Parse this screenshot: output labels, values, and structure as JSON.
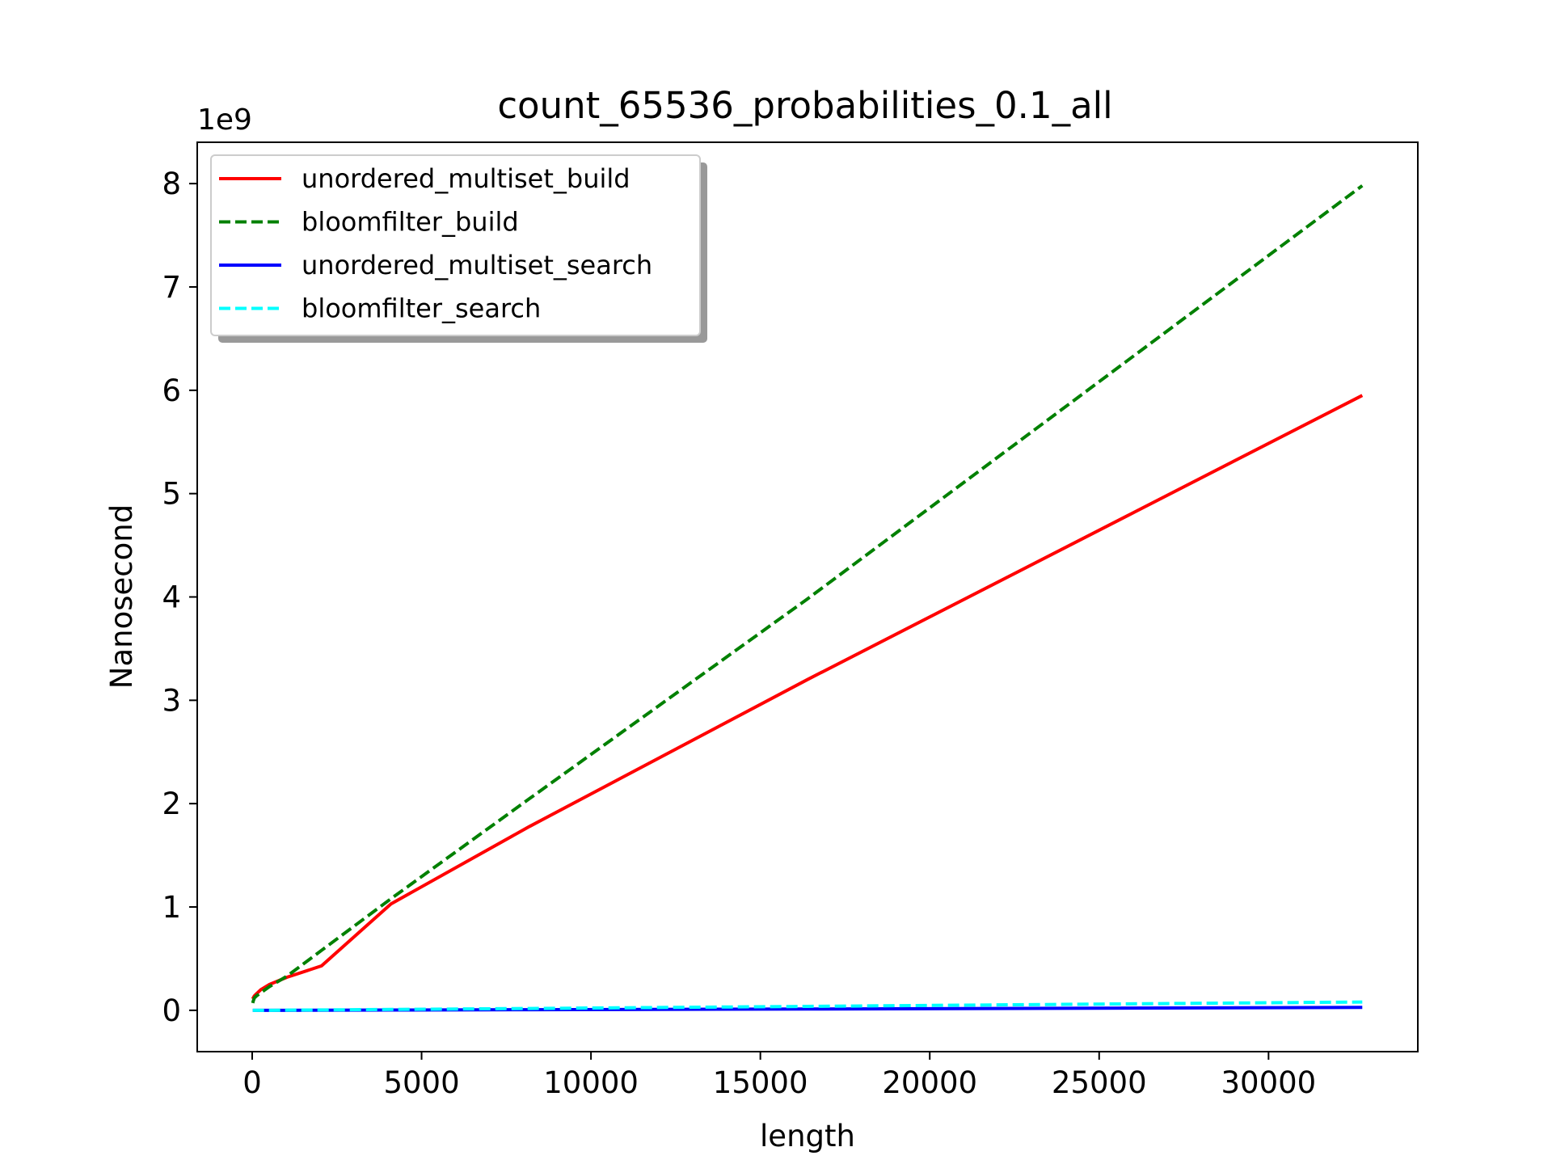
{
  "chart_data": {
    "type": "line",
    "title": "count_65536_probabilities_0.1_all",
    "xlabel": "length",
    "ylabel": "Nanosecond",
    "y_offset_label": "1e9",
    "x": [
      16,
      32,
      64,
      128,
      256,
      512,
      1024,
      2048,
      4096,
      8192,
      16384,
      32768
    ],
    "xlim": [
      -1622,
      34406
    ],
    "ylim": [
      -0.4,
      8.4
    ],
    "x_ticks": [
      0,
      5000,
      10000,
      15000,
      20000,
      25000,
      30000
    ],
    "x_tick_labels": [
      "0",
      "5000",
      "10000",
      "15000",
      "20000",
      "25000",
      "30000"
    ],
    "y_ticks": [
      0,
      1,
      2,
      3,
      4,
      5,
      6,
      7,
      8
    ],
    "y_tick_labels": [
      "0",
      "1",
      "2",
      "3",
      "4",
      "5",
      "6",
      "7",
      "8"
    ],
    "grid": false,
    "legend_position": "upper-left",
    "series": [
      {
        "name": "unordered_multiset_build",
        "color": "#ff0000",
        "style": "solid",
        "values": [
          0.11,
          0.12,
          0.14,
          0.16,
          0.2,
          0.25,
          0.32,
          0.43,
          1.03,
          1.78,
          3.2,
          5.95
        ]
      },
      {
        "name": "bloomfilter_build",
        "color": "#008000",
        "style": "dashed",
        "values": [
          0.07,
          0.09,
          0.12,
          0.14,
          0.17,
          0.23,
          0.33,
          0.58,
          1.08,
          2.05,
          3.98,
          7.98
        ]
      },
      {
        "name": "unordered_multiset_search",
        "color": "#0000ff",
        "style": "solid",
        "values": [
          0.0,
          0.0,
          0.0,
          0.0,
          0.0,
          0.0,
          0.0,
          0.001,
          0.003,
          0.006,
          0.012,
          0.028
        ]
      },
      {
        "name": "bloomfilter_search",
        "color": "#00ffff",
        "style": "dashed",
        "values": [
          0.0,
          0.0,
          0.0,
          0.0,
          0.0,
          0.0,
          0.002,
          0.004,
          0.008,
          0.018,
          0.038,
          0.08
        ]
      }
    ]
  }
}
